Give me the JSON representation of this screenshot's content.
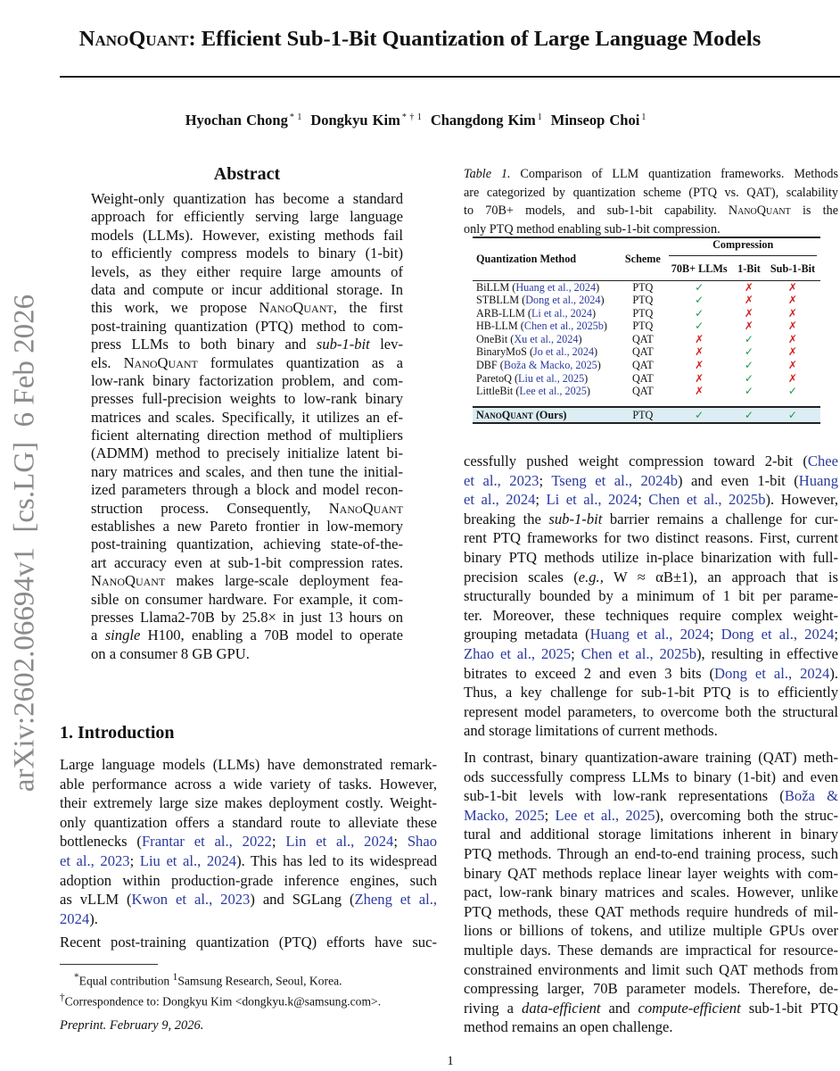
{
  "title": {
    "brand": "NanoQuant",
    "rest": ": Efficient Sub-1-Bit Quantization of Large Language Models"
  },
  "authors": [
    {
      "name": "Hyochan Chong",
      "marks": "* 1"
    },
    {
      "name": "Dongkyu Kim",
      "marks": "* † 1"
    },
    {
      "name": "Changdong Kim",
      "marks": "1"
    },
    {
      "name": "Minseop Choi",
      "marks": "1"
    }
  ],
  "arxiv_stamp": "arXiv:2602.06694v1  [cs.LG]  6 Feb 2026",
  "abstract": {
    "heading": "Abstract",
    "lines": [
      [
        [
          "Weight-only quantization has become a standard"
        ]
      ],
      [
        [
          "approach for efficiently serving large language"
        ]
      ],
      [
        [
          "models (LLMs). However, existing methods fail"
        ]
      ],
      [
        [
          "to efficiently compress models to binary (1-bit)"
        ]
      ],
      [
        [
          "levels, as they either require large amounts of"
        ]
      ],
      [
        [
          "data and compute or incur additional storage. In"
        ]
      ],
      [
        [
          "this work, we propose "
        ],
        [
          "NanoQuant",
          "sc"
        ],
        [
          ", the first"
        ]
      ],
      [
        [
          "post-training quantization (PTQ) method to com-"
        ]
      ],
      [
        [
          "press LLMs to both binary and "
        ],
        [
          "sub-1-bit",
          "i"
        ],
        [
          " lev-"
        ]
      ],
      [
        [
          "els. "
        ],
        [
          "NanoQuant",
          "sc"
        ],
        [
          " formulates quantization as a"
        ]
      ],
      [
        [
          "low-rank binary factorization problem, and com-"
        ]
      ],
      [
        [
          "presses full-precision weights to low-rank binary"
        ]
      ],
      [
        [
          "matrices and scales. Specifically, it utilizes an ef-"
        ]
      ],
      [
        [
          "ficient alternating direction method of multipliers"
        ]
      ],
      [
        [
          "(ADMM) method to precisely initialize latent bi-"
        ]
      ],
      [
        [
          "nary matrices and scales, and then tune the initial-"
        ]
      ],
      [
        [
          "ized parameters through a block and model recon-"
        ]
      ],
      [
        [
          "struction process. Consequently, "
        ],
        [
          "NanoQuant",
          "sc"
        ]
      ],
      [
        [
          "establishes a new Pareto frontier in low-memory"
        ]
      ],
      [
        [
          "post-training quantization, achieving state-of-the-"
        ]
      ],
      [
        [
          "art accuracy even at sub-1-bit compression rates."
        ]
      ],
      [
        [
          "NanoQuant",
          "sc"
        ],
        [
          " makes large-scale deployment fea-"
        ]
      ],
      [
        [
          "sible on consumer hardware. For example, it com-"
        ]
      ],
      [
        [
          "presses Llama2-70B by 25.8× in just 13 hours on"
        ]
      ],
      [
        [
          "a "
        ],
        [
          "single",
          "i"
        ],
        [
          " H100, enabling a 70B model to operate"
        ]
      ],
      [
        [
          "on a consumer 8 GB GPU."
        ]
      ]
    ]
  },
  "intro": {
    "heading": "1. Introduction",
    "p1": [
      [
        [
          "Large language models (LLMs) have demonstrated remark-"
        ]
      ],
      [
        [
          "able performance across a wide variety of tasks. However,"
        ]
      ],
      [
        [
          "their extremely large size makes deployment costly. Weight-"
        ]
      ],
      [
        [
          "only quantization offers a standard route to alleviate these"
        ]
      ],
      [
        [
          "bottlenecks ("
        ],
        [
          "Frantar et al., 2022",
          "c"
        ],
        [
          "; "
        ],
        [
          "Lin et al., 2024",
          "c"
        ],
        [
          "; "
        ],
        [
          "Shao",
          "c"
        ]
      ],
      [
        [
          "et al., 2023",
          "c"
        ],
        [
          "; "
        ],
        [
          "Liu et al., 2024",
          "c"
        ],
        [
          "). This has led to its widespread"
        ]
      ],
      [
        [
          "adoption within production-grade inference engines, such"
        ]
      ],
      [
        [
          "as vLLM ("
        ],
        [
          "Kwon et al., 2023",
          "c"
        ],
        [
          ") and SGLang ("
        ],
        [
          "Zheng et al.,",
          "c"
        ]
      ],
      [
        [
          "2024",
          "c"
        ],
        [
          ")."
        ]
      ]
    ],
    "p2": [
      [
        [
          "Recent post-training quantization (PTQ) efforts have suc-"
        ]
      ]
    ],
    "p3": [
      [
        [
          "cessfully pushed weight compression toward 2-bit ("
        ],
        [
          "Chee",
          "c"
        ]
      ],
      [
        [
          "et al., 2023",
          "c"
        ],
        [
          "; "
        ],
        [
          "Tseng et al., 2024b",
          "c"
        ],
        [
          ") and even 1-bit ("
        ],
        [
          "Huang",
          "c"
        ]
      ],
      [
        [
          "et al., 2024",
          "c"
        ],
        [
          "; "
        ],
        [
          "Li et al., 2024",
          "c"
        ],
        [
          "; "
        ],
        [
          "Chen et al., 2025b",
          "c"
        ],
        [
          "). However,"
        ]
      ],
      [
        [
          "breaking the "
        ],
        [
          "sub-1-bit",
          "i"
        ],
        [
          " barrier remains a challenge for cur-"
        ]
      ],
      [
        [
          "rent PTQ frameworks for two distinct reasons. First, current"
        ]
      ],
      [
        [
          "binary PTQ methods utilize in-place binarization with full-"
        ]
      ],
      [
        [
          "precision scales ("
        ],
        [
          "e.g.,",
          "i"
        ],
        [
          " W ≈ αB±1), an approach that is"
        ]
      ],
      [
        [
          "structurally bounded by a minimum of 1 bit per parame-"
        ]
      ],
      [
        [
          "ter. Moreover, these techniques require complex weight-"
        ]
      ],
      [
        [
          "grouping metadata ("
        ],
        [
          "Huang et al., 2024",
          "c"
        ],
        [
          "; "
        ],
        [
          "Dong et al., 2024",
          "c"
        ],
        [
          ";"
        ]
      ],
      [
        [
          "Zhao et al., 2025",
          "c"
        ],
        [
          "; "
        ],
        [
          "Chen et al., 2025b",
          "c"
        ],
        [
          "), resulting in effective"
        ]
      ],
      [
        [
          "bitrates to exceed 2 and even 3 bits ("
        ],
        [
          "Dong et al., 2024",
          "c"
        ],
        [
          ")."
        ]
      ],
      [
        [
          "Thus, a key challenge for sub-1-bit PTQ is to efficiently"
        ]
      ],
      [
        [
          "represent model parameters, to overcome both the structural"
        ]
      ],
      [
        [
          "and storage limitations of current methods."
        ]
      ]
    ],
    "p4": [
      [
        [
          "In contrast, binary quantization-aware training (QAT) meth-"
        ]
      ],
      [
        [
          "ods successfully compress LLMs to binary (1-bit) and even"
        ]
      ],
      [
        [
          "sub-1-bit levels with low-rank representations ("
        ],
        [
          "Boža &",
          "c"
        ]
      ],
      [
        [
          "Macko, 2025",
          "c"
        ],
        [
          "; "
        ],
        [
          "Lee et al., 2025",
          "c"
        ],
        [
          "), overcoming both the struc-"
        ]
      ],
      [
        [
          "tural and additional storage limitations inherent in binary"
        ]
      ],
      [
        [
          "PTQ methods. Through an end-to-end training process, such"
        ]
      ],
      [
        [
          "binary QAT methods replace linear layer weights with com-"
        ]
      ],
      [
        [
          "pact, low-rank binary matrices and scales. However, unlike"
        ]
      ],
      [
        [
          "PTQ methods, these QAT methods require hundreds of mil-"
        ]
      ],
      [
        [
          "lions or billions of tokens, and utilize multiple GPUs over"
        ]
      ],
      [
        [
          "multiple days. These demands are impractical for resource-"
        ]
      ],
      [
        [
          "constrained environments and limit such QAT methods from"
        ]
      ],
      [
        [
          "compressing larger, 70B parameter models. Therefore, de-"
        ]
      ],
      [
        [
          "riving a "
        ],
        [
          "data-efficient",
          "i"
        ],
        [
          " and "
        ],
        [
          "compute-efficient",
          "i"
        ],
        [
          " sub-1-bit PTQ"
        ]
      ],
      [
        [
          "method remains an open challenge."
        ]
      ]
    ]
  },
  "caption": [
    [
      [
        "Table 1.",
        "i"
      ],
      [
        " Comparison of LLM quantization frameworks. Methods"
      ]
    ],
    [
      [
        "are categorized by quantization scheme (PTQ vs. QAT), scalability"
      ]
    ],
    [
      [
        "to 70B+ models, and sub-1-bit capability. "
      ],
      [
        "NanoQuant",
        "sc"
      ],
      [
        " is the"
      ]
    ],
    [
      [
        "only PTQ method enabling sub-1-bit compression."
      ]
    ]
  ],
  "table": {
    "headers": {
      "method": "Quantization Method",
      "scheme": "Scheme",
      "group": "Compression",
      "c1": "70B+ LLMs",
      "c2": "1-Bit",
      "c3": "Sub-1-Bit"
    },
    "rows": [
      {
        "name": "BiLLM",
        "cite": "Huang et al., 2024",
        "scheme": "PTQ",
        "v": [
          true,
          false,
          false
        ]
      },
      {
        "name": "STBLLM",
        "cite": "Dong et al., 2024",
        "scheme": "PTQ",
        "v": [
          true,
          false,
          false
        ]
      },
      {
        "name": "ARB-LLM",
        "cite": "Li et al., 2024",
        "scheme": "PTQ",
        "v": [
          true,
          false,
          false
        ]
      },
      {
        "name": "HB-LLM",
        "cite": "Chen et al., 2025b",
        "scheme": "PTQ",
        "v": [
          true,
          false,
          false
        ]
      },
      {
        "name": "OneBit",
        "cite": "Xu et al., 2024",
        "scheme": "QAT",
        "v": [
          false,
          true,
          false
        ]
      },
      {
        "name": "BinaryMoS",
        "cite": "Jo et al., 2024",
        "scheme": "QAT",
        "v": [
          false,
          true,
          false
        ]
      },
      {
        "name": "DBF",
        "cite": "Boža & Macko, 2025",
        "scheme": "QAT",
        "v": [
          false,
          true,
          false
        ]
      },
      {
        "name": "ParetoQ",
        "cite": "Liu et al., 2025",
        "scheme": "QAT",
        "v": [
          false,
          true,
          false
        ]
      },
      {
        "name": "LittleBit",
        "cite": "Lee et al., 2025",
        "scheme": "QAT",
        "v": [
          false,
          true,
          true
        ]
      }
    ],
    "ours": {
      "name": "NanoQuant",
      "suffix": " (Ours)",
      "scheme": "PTQ",
      "v": [
        true,
        true,
        true
      ]
    },
    "check": "✓",
    "cross": "✗",
    "colors": {
      "check": "#1a9a4a",
      "cross": "#d42020",
      "highlight": "#dcedf3",
      "cite": "#2b3a9e"
    }
  },
  "footnotes": {
    "f1_mark": "*",
    "f1": "Equal contribution  ",
    "f1b_mark": "1",
    "f1b": "Samsung Research, Seoul, Korea.",
    "f2_mark": "†",
    "f2": "Correspondence to: Dongkyu Kim <dongkyu.k@samsung.com>."
  },
  "preprint": "Preprint. February 9, 2026.",
  "page_number": "1"
}
